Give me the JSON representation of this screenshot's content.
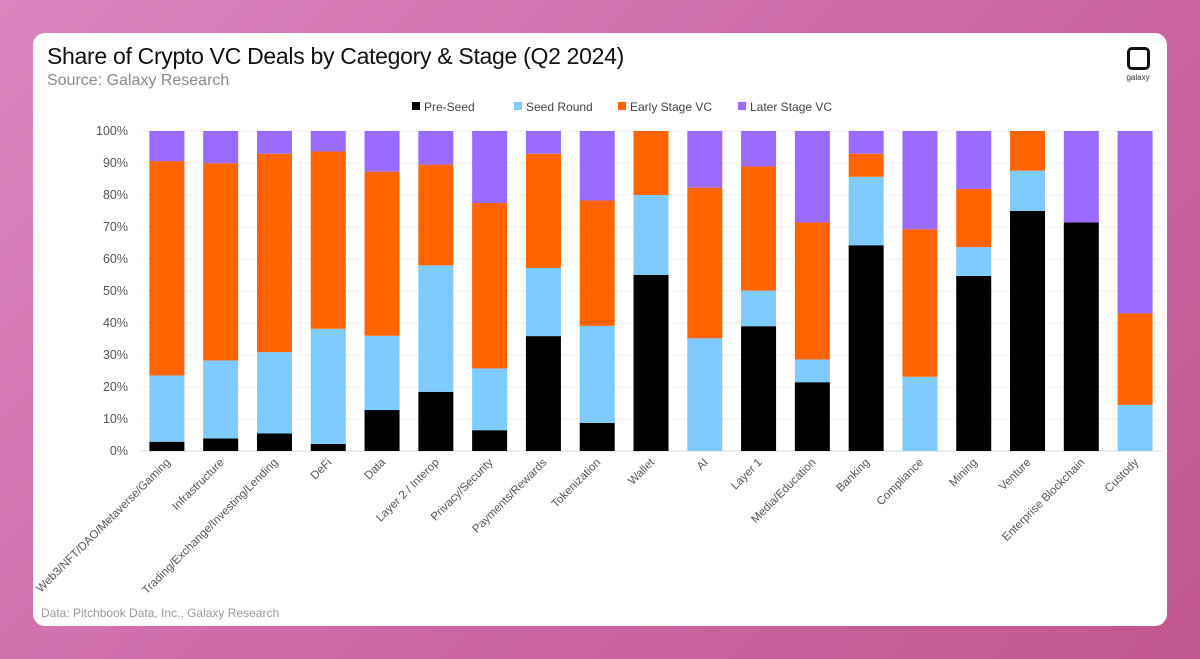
{
  "header": {
    "title": "Share of Crypto VC Deals by Category & Stage (Q2 2024)",
    "subtitle": "Source: Galaxy Research",
    "logo_text": "galaxy"
  },
  "footer": {
    "note": "Data: Pitchbook Data, Inc., Galaxy Research"
  },
  "chart_data": {
    "type": "bar",
    "stacked": true,
    "title": "Share of Crypto VC Deals by Category & Stage (Q2 2024)",
    "ylim": [
      0,
      100
    ],
    "yticks": [
      "0%",
      "10%",
      "20%",
      "30%",
      "40%",
      "50%",
      "60%",
      "70%",
      "80%",
      "90%",
      "100%"
    ],
    "grid": true,
    "legend": "top",
    "categories": [
      "Web3/NFT/DAO/Metaverse/Gaming",
      "Infrastructure",
      "Trading/Exchange/Investing/Lending",
      "DeFi",
      "Data",
      "Layer 2 / Interop",
      "Privacy/Security",
      "Payments/Rewards",
      "Tokenization",
      "Wallet",
      "AI",
      "Layer 1",
      "Media/Education",
      "Banking",
      "Compliance",
      "Mining",
      "Venture",
      "Enterprise Blockchain",
      "Custody"
    ],
    "series": [
      {
        "name": "Pre-Seed",
        "color": "#000000",
        "values": [
          2.9,
          3.9,
          5.5,
          2.2,
          12.8,
          18.5,
          6.5,
          35.9,
          8.8,
          55.0,
          0,
          39.0,
          21.5,
          64.3,
          0,
          54.7,
          75.0,
          71.4,
          0
        ]
      },
      {
        "name": "Seed Round",
        "color": "#7ecbff",
        "values": [
          20.7,
          24.4,
          25.4,
          36.0,
          23.2,
          39.5,
          19.3,
          21.3,
          30.3,
          25.0,
          35.2,
          11.1,
          7.1,
          21.4,
          23.2,
          9.0,
          12.6,
          0,
          14.4
        ]
      },
      {
        "name": "Early Stage VC",
        "color": "#ff6400",
        "values": [
          67.0,
          61.6,
          62.0,
          55.4,
          51.3,
          31.5,
          51.7,
          35.7,
          39.2,
          20.0,
          47.1,
          38.8,
          42.8,
          7.2,
          46.1,
          18.2,
          12.4,
          0,
          28.6
        ]
      },
      {
        "name": "Later Stage VC",
        "color": "#9b6bff",
        "values": [
          9.4,
          10.1,
          7.1,
          6.4,
          12.7,
          10.5,
          22.5,
          7.1,
          21.7,
          0,
          17.7,
          11.1,
          28.6,
          7.1,
          30.7,
          18.1,
          0,
          28.6,
          57.0
        ]
      }
    ]
  }
}
